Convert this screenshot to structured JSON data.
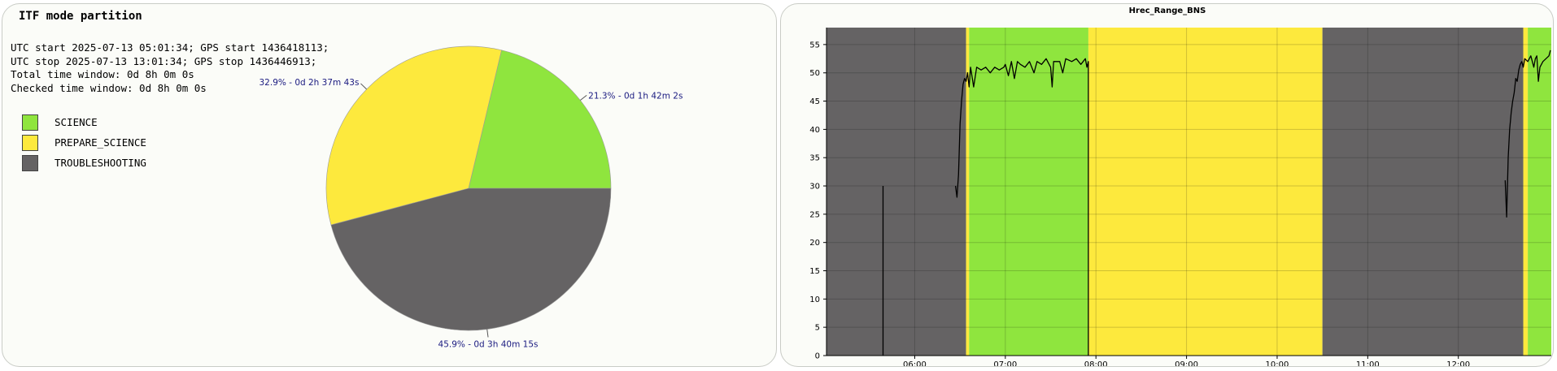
{
  "left_panel": {
    "title": "ITF mode partition",
    "info_lines": [
      "UTC start 2025-07-13 05:01:34; GPS start 1436418113;",
      "UTC stop 2025-07-13 13:01:34; GPS stop 1436446913;",
      "Total time window: 0d 8h 0m 0s",
      "Checked time window: 0d 8h 0m 0s"
    ],
    "legend": [
      {
        "label": "SCIENCE",
        "color": "#8fe53e"
      },
      {
        "label": "PREPARE_SCIENCE",
        "color": "#fde93d"
      },
      {
        "label": "TROUBLESHOOTING",
        "color": "#656364"
      }
    ]
  },
  "right_panel": {
    "title": "Hrec_Range_BNS"
  },
  "chart_data": [
    {
      "type": "pie",
      "title": "ITF mode partition",
      "slices": [
        {
          "name": "SCIENCE",
          "percent": 21.3,
          "label": "21.3% - 0d 1h 42m 2s",
          "color": "#8fe53e"
        },
        {
          "name": "PREPARE_SCIENCE",
          "percent": 32.9,
          "label": "32.9% - 0d 2h 37m 43s",
          "color": "#fde93d"
        },
        {
          "name": "TROUBLESHOOTING",
          "percent": 45.9,
          "label": "45.9% - 0d 3h 40m 15s",
          "color": "#656364"
        }
      ]
    },
    {
      "type": "line",
      "title": "Hrec_Range_BNS",
      "xlim": [
        "05:01:34",
        "13:01:34"
      ],
      "ylim": [
        0,
        58
      ],
      "x_ticks": [
        "06:00",
        "07:00",
        "08:00",
        "09:00",
        "10:00",
        "11:00",
        "12:00"
      ],
      "y_ticks": [
        0,
        5,
        10,
        15,
        20,
        25,
        30,
        35,
        40,
        45,
        50,
        55
      ],
      "grid": true,
      "mode_bands": [
        {
          "mode": "TROUBLESHOOTING",
          "start": "05:01:34",
          "end": "06:34",
          "color": "#656364"
        },
        {
          "mode": "PREPARE_SCIENCE",
          "start": "06:34",
          "end": "06:36",
          "color": "#fde93d"
        },
        {
          "mode": "SCIENCE",
          "start": "06:36",
          "end": "07:55",
          "color": "#8fe53e"
        },
        {
          "mode": "PREPARE_SCIENCE",
          "start": "07:55",
          "end": "10:30",
          "color": "#fde93d"
        },
        {
          "mode": "TROUBLESHOOTING",
          "start": "10:30",
          "end": "12:43",
          "color": "#656364"
        },
        {
          "mode": "PREPARE_SCIENCE",
          "start": "12:43",
          "end": "12:46",
          "color": "#fde93d"
        },
        {
          "mode": "SCIENCE",
          "start": "12:46",
          "end": "13:01:34",
          "color": "#8fe53e"
        }
      ],
      "series": [
        {
          "color": "#000000",
          "segments": [
            [
              [
                "05:39",
                0
              ],
              [
                "05:39",
                30
              ]
            ],
            [
              [
                "06:27",
                30
              ],
              [
                "06:28",
                28
              ],
              [
                "06:29",
                32
              ],
              [
                "06:30",
                41
              ],
              [
                "06:31",
                45
              ],
              [
                "06:32",
                48
              ],
              [
                "06:33",
                49
              ],
              [
                "06:34",
                48.5
              ],
              [
                "06:35",
                50
              ],
              [
                "06:36",
                47.5
              ],
              [
                "06:37",
                51
              ],
              [
                "06:39",
                47.5
              ],
              [
                "06:41",
                51
              ],
              [
                "06:44",
                50.5
              ],
              [
                "06:47",
                51
              ],
              [
                "06:50",
                50
              ],
              [
                "06:53",
                51
              ],
              [
                "06:56",
                50.5
              ],
              [
                "06:59",
                51
              ],
              [
                "07:00",
                51.5
              ],
              [
                "07:02",
                49.5
              ],
              [
                "07:04",
                52
              ],
              [
                "07:06",
                49
              ],
              [
                "07:08",
                52
              ],
              [
                "07:10",
                51.5
              ],
              [
                "07:13",
                51
              ],
              [
                "07:16",
                52
              ],
              [
                "07:19",
                50
              ],
              [
                "07:21",
                52
              ],
              [
                "07:24",
                51.5
              ],
              [
                "07:27",
                52.5
              ],
              [
                "07:30",
                51
              ],
              [
                "07:31",
                47.5
              ],
              [
                "07:32",
                52
              ],
              [
                "07:36",
                52
              ],
              [
                "07:38",
                50
              ],
              [
                "07:40",
                52.5
              ],
              [
                "07:44",
                52
              ],
              [
                "07:47",
                52.5
              ],
              [
                "07:50",
                51.5
              ],
              [
                "07:53",
                52.5
              ],
              [
                "07:54",
                51
              ],
              [
                "07:55",
                52
              ],
              [
                "07:55",
                0
              ]
            ],
            [
              [
                "12:31",
                31
              ],
              [
                "12:32",
                24.5
              ],
              [
                "12:33",
                35
              ],
              [
                "12:34",
                40
              ],
              [
                "12:35",
                43
              ],
              [
                "12:36",
                45
              ],
              [
                "12:37",
                46.5
              ],
              [
                "12:38",
                49
              ],
              [
                "12:39",
                48.5
              ],
              [
                "12:40",
                50.5
              ],
              [
                "12:41",
                51.5
              ],
              [
                "12:42",
                52
              ],
              [
                "12:43",
                51
              ],
              [
                "12:44",
                52.5
              ],
              [
                "12:46",
                52
              ],
              [
                "12:48",
                53
              ],
              [
                "12:50",
                51
              ],
              [
                "12:51",
                52.5
              ],
              [
                "12:52",
                53
              ],
              [
                "12:53",
                48.5
              ],
              [
                "12:54",
                51
              ],
              [
                "12:56",
                52
              ],
              [
                "12:58",
                52.5
              ],
              [
                "13:00",
                53
              ],
              [
                "13:01",
                54
              ]
            ]
          ]
        }
      ]
    }
  ]
}
